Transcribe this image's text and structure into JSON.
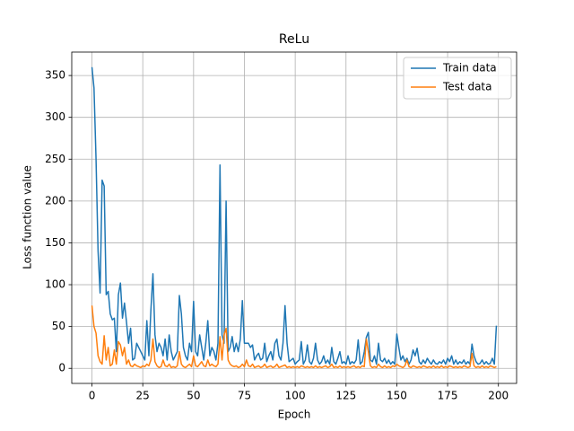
{
  "chart_data": {
    "type": "line",
    "title": "ReLu",
    "x_label": "Epoch",
    "y_label": "Loss function value",
    "x": [
      0,
      1,
      2,
      3,
      4,
      5,
      6,
      7,
      8,
      9,
      10,
      11,
      12,
      13,
      14,
      15,
      16,
      17,
      18,
      19,
      20,
      21,
      22,
      23,
      24,
      25,
      26,
      27,
      28,
      29,
      30,
      31,
      32,
      33,
      34,
      35,
      36,
      37,
      38,
      39,
      40,
      41,
      42,
      43,
      44,
      45,
      46,
      47,
      48,
      49,
      50,
      51,
      52,
      53,
      54,
      55,
      56,
      57,
      58,
      59,
      60,
      61,
      62,
      63,
      64,
      65,
      66,
      67,
      68,
      69,
      70,
      71,
      72,
      73,
      74,
      75,
      76,
      77,
      78,
      79,
      80,
      81,
      82,
      83,
      84,
      85,
      86,
      87,
      88,
      89,
      90,
      91,
      92,
      93,
      94,
      95,
      96,
      97,
      98,
      99,
      100,
      101,
      102,
      103,
      104,
      105,
      106,
      107,
      108,
      109,
      110,
      111,
      112,
      113,
      114,
      115,
      116,
      117,
      118,
      119,
      120,
      121,
      122,
      123,
      124,
      125,
      126,
      127,
      128,
      129,
      130,
      131,
      132,
      133,
      134,
      135,
      136,
      137,
      138,
      139,
      140,
      141,
      142,
      143,
      144,
      145,
      146,
      147,
      148,
      149,
      150,
      151,
      152,
      153,
      154,
      155,
      156,
      157,
      158,
      159,
      160,
      161,
      162,
      163,
      164,
      165,
      166,
      167,
      168,
      169,
      170,
      171,
      172,
      173,
      174,
      175,
      176,
      177,
      178,
      179,
      180,
      181,
      182,
      183,
      184,
      185,
      186,
      187,
      188,
      189,
      190,
      191,
      192,
      193,
      194,
      195,
      196,
      197,
      198,
      199
    ],
    "series": [
      {
        "name": "Train data",
        "color": "#1f77b4",
        "values": [
          360,
          335,
          250,
          140,
          90,
          225,
          218,
          88,
          92,
          65,
          58,
          60,
          20,
          88,
          102,
          60,
          78,
          55,
          30,
          48,
          10,
          12,
          30,
          25,
          20,
          15,
          10,
          57,
          15,
          70,
          113,
          40,
          20,
          30,
          25,
          15,
          35,
          10,
          40,
          20,
          10,
          15,
          20,
          87,
          65,
          25,
          15,
          10,
          30,
          20,
          80,
          20,
          15,
          40,
          25,
          10,
          30,
          57,
          15,
          25,
          20,
          10,
          30,
          243,
          40,
          30,
          200,
          20,
          25,
          38,
          20,
          30,
          20,
          35,
          81,
          30,
          30,
          30,
          25,
          28,
          10,
          15,
          18,
          10,
          12,
          30,
          8,
          15,
          20,
          10,
          30,
          35,
          15,
          10,
          30,
          75,
          30,
          8,
          10,
          12,
          5,
          8,
          10,
          32,
          5,
          10,
          28,
          8,
          5,
          12,
          30,
          10,
          5,
          8,
          15,
          6,
          10,
          5,
          25,
          8,
          5,
          12,
          20,
          6,
          8,
          5,
          15,
          5,
          8,
          6,
          10,
          34,
          5,
          8,
          20,
          37,
          43,
          10,
          8,
          15,
          5,
          30,
          10,
          8,
          12,
          6,
          10,
          5,
          8,
          5,
          41,
          25,
          10,
          15,
          8,
          12,
          5,
          10,
          22,
          15,
          24,
          8,
          5,
          10,
          6,
          12,
          8,
          5,
          10,
          6,
          5,
          8,
          6,
          10,
          5,
          12,
          8,
          15,
          5,
          10,
          5,
          8,
          6,
          10,
          5,
          8,
          5,
          29,
          15,
          8,
          5,
          6,
          10,
          5,
          8,
          5,
          6,
          12,
          5,
          51
        ]
      },
      {
        "name": "Test data",
        "color": "#ff7f0e",
        "values": [
          75,
          50,
          42,
          15,
          8,
          5,
          39,
          10,
          25,
          3,
          5,
          22,
          5,
          32,
          28,
          15,
          25,
          5,
          10,
          3,
          2,
          5,
          3,
          2,
          1,
          3,
          2,
          5,
          3,
          10,
          35,
          8,
          3,
          1,
          2,
          10,
          3,
          2,
          5,
          1,
          2,
          1,
          3,
          20,
          5,
          2,
          1,
          3,
          5,
          2,
          15,
          3,
          2,
          5,
          8,
          3,
          2,
          10,
          3,
          5,
          3,
          2,
          5,
          38,
          10,
          40,
          48,
          10,
          5,
          3,
          2,
          3,
          1,
          2,
          5,
          2,
          10,
          3,
          2,
          5,
          1,
          2,
          3,
          1,
          2,
          5,
          1,
          2,
          3,
          1,
          2,
          5,
          1,
          2,
          3,
          4,
          1,
          2,
          1,
          2,
          1,
          2,
          1,
          3,
          2,
          1,
          2,
          1,
          2,
          1,
          3,
          1,
          2,
          1,
          2,
          3,
          1,
          2,
          5,
          1,
          2,
          1,
          3,
          1,
          2,
          1,
          2,
          1,
          2,
          3,
          1,
          2,
          1,
          3,
          2,
          35,
          20,
          3,
          1,
          2,
          1,
          5,
          2,
          1,
          3,
          1,
          2,
          1,
          3,
          2,
          5,
          3,
          2,
          1,
          3,
          10,
          2,
          1,
          3,
          2,
          1,
          2,
          1,
          3,
          2,
          1,
          2,
          1,
          3,
          1,
          2,
          1,
          3,
          1,
          2,
          1,
          3,
          2,
          1,
          2,
          1,
          2,
          1,
          3,
          2,
          1,
          2,
          18,
          3,
          1,
          2,
          1,
          3,
          1,
          2,
          1,
          3,
          2,
          1,
          2
        ]
      }
    ],
    "xlim": [
      -9.95,
      208.95
    ],
    "ylim": [
      -18,
      378
    ],
    "xticks": [
      0,
      25,
      50,
      75,
      100,
      125,
      150,
      175,
      200
    ],
    "yticks": [
      0,
      50,
      100,
      150,
      200,
      250,
      300,
      350
    ],
    "grid": true,
    "legend": "upper right"
  }
}
